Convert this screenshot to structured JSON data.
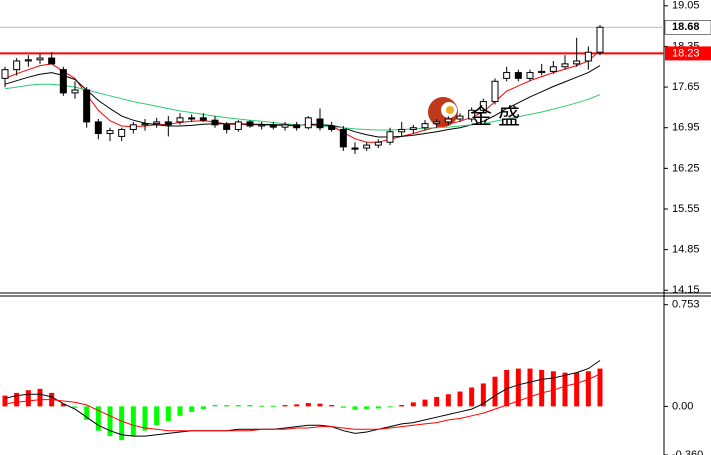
{
  "chart_data": [
    {
      "type": "candlestick",
      "open": [
        17.8,
        17.95,
        18.1,
        18.12,
        18.15,
        17.95,
        17.55,
        17.6,
        17.05,
        16.85,
        16.8,
        16.92,
        17.0,
        17.02,
        17.05,
        17.05,
        17.12,
        17.12,
        17.08,
        17.0,
        16.92,
        17.05,
        16.98,
        17.0,
        16.96,
        17.0,
        16.95,
        17.1,
        16.98,
        16.92,
        16.6,
        16.6,
        16.65,
        16.7,
        16.88,
        16.92,
        16.95,
        17.02,
        17.05,
        17.1,
        17.1,
        17.25,
        17.4,
        17.8,
        17.9,
        17.8,
        17.9,
        17.92,
        18.0,
        18.05,
        18.1,
        18.25
      ],
      "high": [
        18.0,
        18.15,
        18.2,
        18.22,
        18.25,
        18.0,
        17.75,
        17.65,
        17.1,
        16.95,
        16.95,
        17.05,
        17.1,
        17.12,
        17.15,
        17.2,
        17.18,
        17.2,
        17.15,
        17.05,
        17.08,
        17.08,
        17.05,
        17.05,
        17.05,
        17.05,
        17.15,
        17.28,
        17.05,
        16.98,
        16.7,
        16.7,
        16.75,
        16.95,
        17.05,
        17.0,
        17.08,
        17.1,
        17.15,
        17.2,
        17.3,
        17.45,
        17.8,
        18.0,
        17.95,
        17.95,
        18.05,
        18.1,
        18.2,
        18.5,
        18.35,
        18.72
      ],
      "low": [
        17.65,
        17.85,
        18.0,
        18.05,
        18.05,
        17.5,
        17.45,
        16.95,
        16.75,
        16.72,
        16.72,
        16.85,
        16.9,
        16.95,
        16.8,
        17.0,
        17.05,
        17.05,
        16.95,
        16.85,
        16.88,
        16.95,
        16.92,
        16.92,
        16.9,
        16.9,
        16.92,
        16.9,
        16.88,
        16.55,
        16.5,
        16.55,
        16.6,
        16.65,
        16.8,
        16.85,
        16.9,
        16.95,
        17.0,
        17.05,
        17.05,
        17.2,
        17.35,
        17.75,
        17.75,
        17.75,
        17.85,
        17.88,
        17.95,
        18.0,
        17.95,
        18.2
      ],
      "close": [
        17.95,
        18.1,
        18.12,
        18.15,
        18.05,
        17.55,
        17.6,
        17.05,
        16.85,
        16.9,
        16.92,
        17.0,
        17.02,
        17.05,
        17.0,
        17.12,
        17.1,
        17.08,
        17.0,
        16.92,
        17.05,
        16.98,
        17.0,
        16.96,
        17.0,
        16.95,
        17.12,
        16.95,
        16.92,
        16.62,
        16.58,
        16.65,
        16.7,
        16.88,
        16.92,
        16.95,
        17.02,
        17.05,
        17.1,
        17.15,
        17.25,
        17.4,
        17.75,
        17.9,
        17.8,
        17.9,
        17.92,
        18.0,
        18.05,
        18.1,
        18.25,
        18.68
      ],
      "lines": [
        {
          "color": "#ff0000",
          "values": [
            17.8,
            17.88,
            17.95,
            18.02,
            18.05,
            17.92,
            17.8,
            17.52,
            17.25,
            17.07,
            16.98,
            16.97,
            16.98,
            17.0,
            17.01,
            17.04,
            17.06,
            17.07,
            17.05,
            17.01,
            17.01,
            17.0,
            17.0,
            16.99,
            16.99,
            16.98,
            17.02,
            17.0,
            16.98,
            16.87,
            16.76,
            16.7,
            16.7,
            16.75,
            16.8,
            16.85,
            16.91,
            16.96,
            17.01,
            17.06,
            17.13,
            17.22,
            17.4,
            17.58,
            17.67,
            17.76,
            17.83,
            17.9,
            17.96,
            18.02,
            18.1,
            18.28
          ]
        },
        {
          "color": "#000000",
          "values": [
            17.7,
            17.76,
            17.82,
            17.87,
            17.9,
            17.85,
            17.78,
            17.6,
            17.42,
            17.28,
            17.15,
            17.08,
            17.03,
            17.0,
            16.98,
            16.98,
            16.99,
            17.01,
            17.02,
            17.02,
            17.02,
            17.01,
            17.01,
            17.0,
            17.0,
            16.99,
            17.0,
            17.0,
            16.99,
            16.95,
            16.88,
            16.83,
            16.79,
            16.79,
            16.8,
            16.82,
            16.85,
            16.88,
            16.92,
            16.95,
            17.0,
            17.06,
            17.16,
            17.28,
            17.38,
            17.48,
            17.57,
            17.66,
            17.74,
            17.82,
            17.9,
            18.02
          ]
        },
        {
          "color": "#2ecc71",
          "values": [
            17.62,
            17.65,
            17.68,
            17.7,
            17.7,
            17.68,
            17.65,
            17.6,
            17.55,
            17.5,
            17.45,
            17.4,
            17.36,
            17.32,
            17.28,
            17.24,
            17.21,
            17.18,
            17.15,
            17.12,
            17.1,
            17.08,
            17.06,
            17.04,
            17.02,
            17.0,
            16.99,
            16.98,
            16.97,
            16.95,
            16.93,
            16.92,
            16.91,
            16.91,
            16.92,
            16.93,
            16.94,
            16.95,
            16.96,
            16.98,
            17.0,
            17.02,
            17.06,
            17.1,
            17.14,
            17.18,
            17.22,
            17.27,
            17.32,
            17.38,
            17.44,
            17.52
          ]
        }
      ],
      "ylim": [
        14.12,
        19.15
      ],
      "yticks": [
        19.05,
        18.35,
        17.65,
        16.95,
        16.25,
        15.55,
        14.85,
        14.15
      ],
      "last_price": 18.68,
      "level": 18.23,
      "level_color": "#ff0000",
      "watermark": "金 盛"
    },
    {
      "type": "macd",
      "values": [
        0.08,
        0.1,
        0.12,
        0.13,
        0.1,
        0.02,
        -0.01,
        -0.1,
        -0.18,
        -0.22,
        -0.25,
        -0.22,
        -0.18,
        -0.14,
        -0.11,
        -0.07,
        -0.04,
        -0.02,
        0.01,
        0.01,
        0.01,
        0.01,
        0.005,
        0.005,
        0.01,
        0.015,
        0.025,
        0.02,
        0.01,
        -0.01,
        -0.025,
        -0.02,
        -0.015,
        -0.005,
        0.01,
        0.03,
        0.05,
        0.07,
        0.09,
        0.11,
        0.14,
        0.17,
        0.22,
        0.27,
        0.28,
        0.28,
        0.27,
        0.26,
        0.25,
        0.25,
        0.26,
        0.28
      ],
      "colors": [
        "#ff0000",
        "#ff0000",
        "#ff0000",
        "#ff0000",
        "#ff0000",
        "#ff0000",
        "#00ff00",
        "#00ff00",
        "#00ff00",
        "#00ff00",
        "#00ff00",
        "#00ff00",
        "#00ff00",
        "#00ff00",
        "#00ff00",
        "#00ff00",
        "#00ff00",
        "#00ff00",
        "#00ff00",
        "#00ff00",
        "#00ff00",
        "#00ff00",
        "#00ff00",
        "#00ff00",
        "#ff0000",
        "#ff0000",
        "#ff0000",
        "#ff0000",
        "#ff0000",
        "#00ff00",
        "#00ff00",
        "#00ff00",
        "#00ff00",
        "#00ff00",
        "#ff0000",
        "#ff0000",
        "#ff0000",
        "#ff0000",
        "#ff0000",
        "#ff0000",
        "#ff0000",
        "#ff0000",
        "#ff0000",
        "#ff0000",
        "#ff0000",
        "#ff0000",
        "#ff0000",
        "#ff0000",
        "#ff0000",
        "#ff0000",
        "#ff0000",
        "#ff0000"
      ],
      "lines": [
        {
          "color": "#000000",
          "values": [
            0.06,
            0.08,
            0.09,
            0.09,
            0.07,
            0.02,
            -0.02,
            -0.08,
            -0.14,
            -0.18,
            -0.21,
            -0.22,
            -0.22,
            -0.21,
            -0.2,
            -0.19,
            -0.18,
            -0.18,
            -0.18,
            -0.18,
            -0.17,
            -0.17,
            -0.17,
            -0.17,
            -0.16,
            -0.15,
            -0.14,
            -0.14,
            -0.15,
            -0.18,
            -0.2,
            -0.19,
            -0.17,
            -0.15,
            -0.13,
            -0.12,
            -0.1,
            -0.08,
            -0.06,
            -0.04,
            -0.02,
            0.02,
            0.08,
            0.13,
            0.16,
            0.18,
            0.2,
            0.21,
            0.23,
            0.25,
            0.28,
            0.34
          ]
        },
        {
          "color": "#ff0000",
          "values": [
            0.02,
            0.03,
            0.04,
            0.05,
            0.05,
            0.04,
            0.03,
            0.01,
            -0.03,
            -0.07,
            -0.11,
            -0.14,
            -0.16,
            -0.17,
            -0.18,
            -0.18,
            -0.18,
            -0.18,
            -0.18,
            -0.18,
            -0.18,
            -0.18,
            -0.17,
            -0.17,
            -0.17,
            -0.16,
            -0.16,
            -0.15,
            -0.15,
            -0.16,
            -0.17,
            -0.17,
            -0.17,
            -0.16,
            -0.15,
            -0.14,
            -0.13,
            -0.12,
            -0.1,
            -0.09,
            -0.07,
            -0.05,
            -0.02,
            0.01,
            0.04,
            0.07,
            0.1,
            0.12,
            0.15,
            0.17,
            0.2,
            0.24
          ]
        }
      ],
      "ylim": [
        -0.36,
        0.81
      ],
      "yticks": [
        0.753,
        {
          "value": 0,
          "label": "0.00"
        },
        {
          "value": -0.36,
          "label": "-0.360"
        }
      ]
    }
  ]
}
